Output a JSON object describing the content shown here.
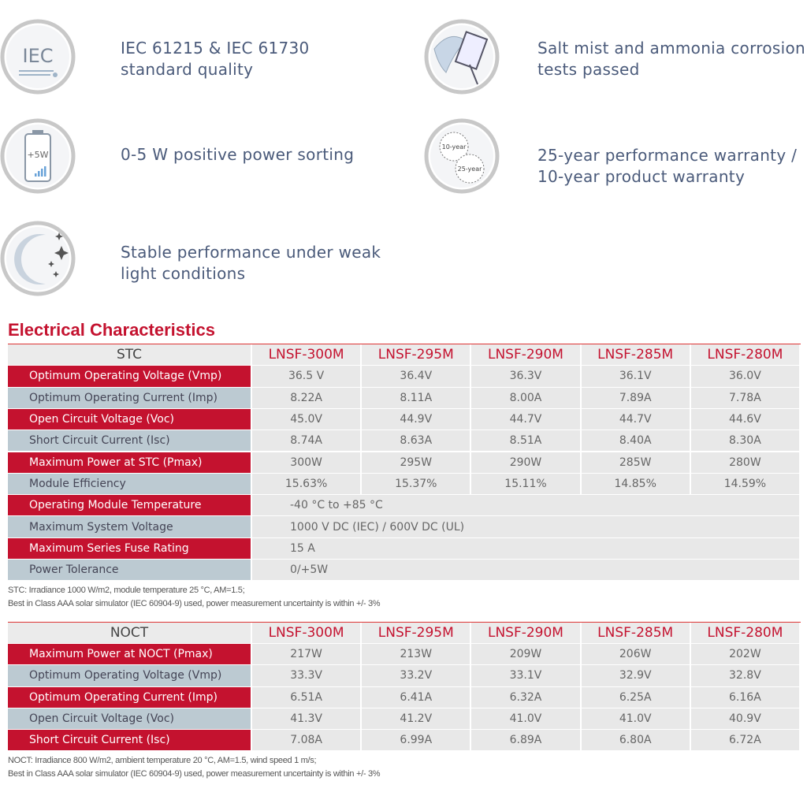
{
  "features": [
    {
      "icon_text": [
        "IEC"
      ],
      "lines": [
        "IEC 61215 & IEC 61730",
        "standard quality"
      ]
    },
    {
      "icon_text": [
        "+5W"
      ],
      "lines": [
        "0-5 W positive power sorting"
      ]
    },
    {
      "lines": [
        "Stable performance under weak",
        "light conditions"
      ]
    },
    {
      "lines": [
        "Salt mist and ammonia corrosion",
        "tests passed"
      ]
    },
    {
      "icon_text": [
        "10-year",
        "25-year"
      ],
      "lines": [
        "25-year performance warranty /",
        "10-year product warranty"
      ]
    }
  ],
  "section_title": "Electrical Characteristics",
  "stc": {
    "header": [
      "STC",
      "LNSF-300M",
      "LNSF-295M",
      "LNSF-290M",
      "LNSF-285M",
      "LNSF-280M"
    ],
    "rows": [
      [
        "Optimum Operating Voltage (Vmp)",
        "36.5 V",
        "36.4V",
        "36.3V",
        "36.1V",
        "36.0V"
      ],
      [
        "Optimum Operating Current (Imp)",
        "8.22A",
        "8.11A",
        "8.00A",
        "7.89A",
        "7.78A"
      ],
      [
        "Open Circuit Voltage (Voc)",
        "45.0V",
        "44.9V",
        "44.7V",
        "44.7V",
        "44.6V"
      ],
      [
        "Short Circuit Current (Isc)",
        "8.74A",
        "8.63A",
        "8.51A",
        "8.40A",
        "8.30A"
      ],
      [
        "Maximum Power at STC (Pmax)",
        "300W",
        "295W",
        "290W",
        "285W",
        "280W"
      ],
      [
        "Module Efficiency",
        "15.63%",
        "15.37%",
        "15.11%",
        "14.85%",
        "14.59%"
      ],
      [
        "Operating Module Temperature",
        "-40 °C to +85 °C"
      ],
      [
        "Maximum System Voltage",
        "1000 V DC (IEC) / 600V DC (UL)"
      ],
      [
        "Maximum Series Fuse Rating",
        "15 A"
      ],
      [
        "Power Tolerance",
        "0/+5W"
      ]
    ],
    "notes": [
      "STC: Irradiance 1000 W/m2, module temperature 25 °C, AM=1.5;",
      "Best in Class AAA solar simulator (IEC 60904-9) used, power measurement uncertainty is within +/- 3%"
    ]
  },
  "noct": {
    "header": [
      "NOCT",
      "LNSF-300M",
      "LNSF-295M",
      "LNSF-290M",
      "LNSF-285M",
      "LNSF-280M"
    ],
    "rows": [
      [
        "Maximum Power at NOCT (Pmax)",
        "217W",
        "213W",
        "209W",
        "206W",
        "202W"
      ],
      [
        "Optimum Operating Voltage (Vmp)",
        "33.3V",
        "33.2V",
        "33.1V",
        "32.9V",
        "32.8V"
      ],
      [
        "Optimum Operating Current (Imp)",
        "6.51A",
        "6.41A",
        "6.32A",
        "6.25A",
        "6.16A"
      ],
      [
        "Open Circuit Voltage (Voc)",
        "41.3V",
        "41.2V",
        "41.0V",
        "41.0V",
        "40.9V"
      ],
      [
        "Short Circuit Current (Isc)",
        "7.08A",
        "6.99A",
        "6.89A",
        "6.80A",
        "6.72A"
      ]
    ],
    "notes": [
      "NOCT: Irradiance 800 W/m2, ambient temperature 20 °C, AM=1.5, wind speed 1 m/s;",
      "Best in Class AAA solar simulator (IEC 60904-9) used, power measurement uncertainty is within +/- 3%"
    ]
  }
}
